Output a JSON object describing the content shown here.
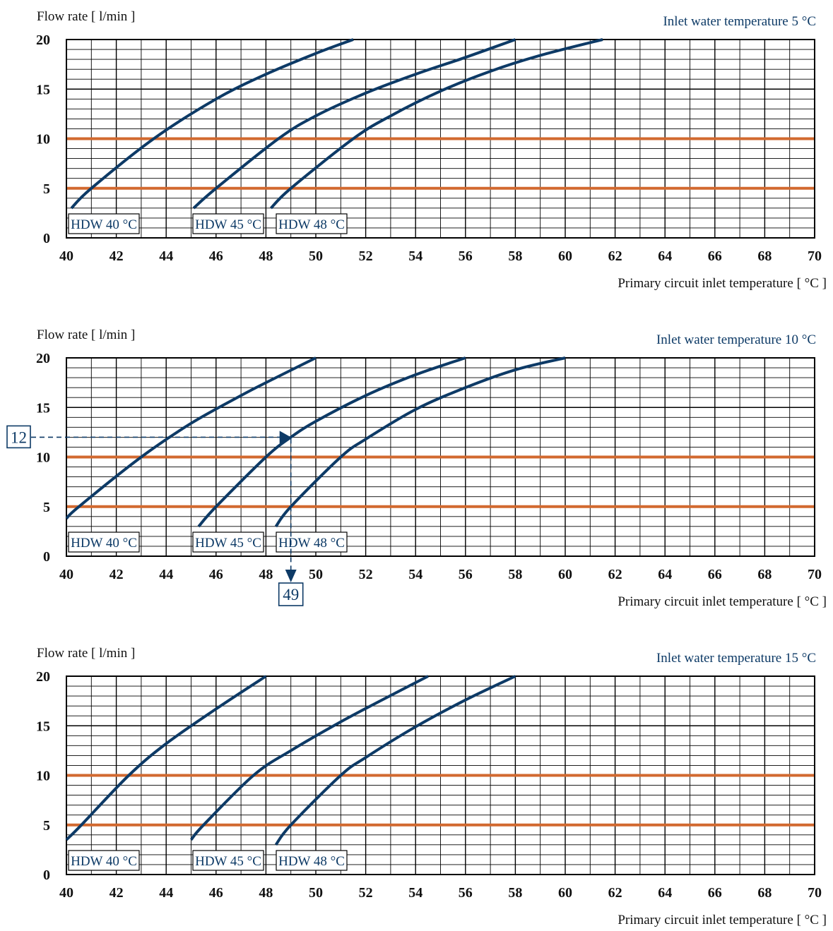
{
  "colors": {
    "curve": "#0d3a66",
    "reference_line": "#d2692f",
    "grid": "#000000",
    "label_text": "#0d3a66"
  },
  "chart_data": [
    {
      "type": "line",
      "title": "",
      "subtitle": "Inlet water temperature  5 °C",
      "xlabel": "Primary circuit inlet temperature [ °C ]",
      "ylabel": "Flow rate [ l/min ]",
      "xlim": [
        40,
        70
      ],
      "ylim": [
        0,
        20
      ],
      "x_ticks": [
        "40",
        "42",
        "44",
        "46",
        "48",
        "50",
        "52",
        "54",
        "56",
        "58",
        "60",
        "62",
        "64",
        "66",
        "68",
        "70"
      ],
      "y_ticks": [
        "0",
        "5",
        "10",
        "15",
        "20"
      ],
      "grid": true,
      "reference_lines_y": [
        5,
        10
      ],
      "series": [
        {
          "name": "HDW 40 °C",
          "points": [
            [
              40.2,
              3
            ],
            [
              41,
              5
            ],
            [
              43.5,
              10
            ],
            [
              46,
              14
            ],
            [
              48,
              16.5
            ],
            [
              50,
              18.6
            ],
            [
              51.5,
              20
            ]
          ]
        },
        {
          "name": "HDW 45 °C",
          "points": [
            [
              45.1,
              3
            ],
            [
              46,
              5
            ],
            [
              48.5,
              10
            ],
            [
              50,
              12.3
            ],
            [
              52,
              14.6
            ],
            [
              54,
              16.5
            ],
            [
              56,
              18.2
            ],
            [
              58,
              20
            ]
          ]
        },
        {
          "name": "HDW 48 °C",
          "points": [
            [
              48.2,
              3
            ],
            [
              49,
              5
            ],
            [
              51.5,
              10
            ],
            [
              53,
              12.3
            ],
            [
              55,
              14.8
            ],
            [
              57,
              16.8
            ],
            [
              59,
              18.4
            ],
            [
              61.5,
              20
            ]
          ]
        }
      ],
      "annotation": null
    },
    {
      "type": "line",
      "title": "",
      "subtitle": "Inlet water temperature 10 °C",
      "xlabel": "Primary circuit inlet temperature [ °C ]",
      "ylabel": "Flow rate [ l/min ]",
      "xlim": [
        40,
        70
      ],
      "ylim": [
        0,
        20
      ],
      "x_ticks": [
        "40",
        "42",
        "44",
        "46",
        "48",
        "50",
        "52",
        "54",
        "56",
        "58",
        "60",
        "62",
        "64",
        "66",
        "68",
        "70"
      ],
      "y_ticks": [
        "0",
        "5",
        "10",
        "15",
        "20"
      ],
      "grid": true,
      "reference_lines_y": [
        5,
        10
      ],
      "series": [
        {
          "name": "HDW 40 °C",
          "points": [
            [
              40,
              3.8
            ],
            [
              40.5,
              5
            ],
            [
              43,
              10
            ],
            [
              45,
              13.4
            ],
            [
              47,
              16.2
            ],
            [
              48,
              17.5
            ],
            [
              50,
              20
            ]
          ]
        },
        {
          "name": "HDW 45 °C",
          "points": [
            [
              45.3,
              3
            ],
            [
              46,
              5
            ],
            [
              48,
              10
            ],
            [
              49,
              12
            ],
            [
              50,
              13.6
            ],
            [
              52,
              16.2
            ],
            [
              54,
              18.3
            ],
            [
              56,
              20
            ]
          ]
        },
        {
          "name": "HDW 48 °C",
          "points": [
            [
              48.4,
              3
            ],
            [
              49,
              5
            ],
            [
              51,
              10
            ],
            [
              52,
              11.8
            ],
            [
              54,
              14.8
            ],
            [
              56,
              17
            ],
            [
              58,
              18.8
            ],
            [
              60,
              20
            ]
          ]
        }
      ],
      "annotation": {
        "flow": "12",
        "temperature": "49",
        "x": 49,
        "y": 12
      }
    },
    {
      "type": "line",
      "title": "",
      "subtitle": "Inlet water temperature  15 °C",
      "xlabel": "Primary circuit inlet temperature [ °C ]",
      "ylabel": "Flow rate [ l/min ]",
      "xlim": [
        40,
        70
      ],
      "ylim": [
        0,
        20
      ],
      "x_ticks": [
        "40",
        "42",
        "44",
        "46",
        "48",
        "50",
        "52",
        "54",
        "56",
        "58",
        "60",
        "62",
        "64",
        "66",
        "68",
        "70"
      ],
      "y_ticks": [
        "0",
        "5",
        "10",
        "15",
        "20"
      ],
      "grid": true,
      "reference_lines_y": [
        5,
        10
      ],
      "series": [
        {
          "name": "HDW 40 °C",
          "points": [
            [
              40,
              3.5
            ],
            [
              40.6,
              5
            ],
            [
              42.5,
              10
            ],
            [
              44,
              13.2
            ],
            [
              46,
              16.7
            ],
            [
              48,
              20
            ]
          ]
        },
        {
          "name": "HDW 45 °C",
          "points": [
            [
              45,
              3.5
            ],
            [
              45.5,
              5
            ],
            [
              47.5,
              10
            ],
            [
              49,
              12.5
            ],
            [
              51,
              15.4
            ],
            [
              52.5,
              17.4
            ],
            [
              54.5,
              20
            ]
          ]
        },
        {
          "name": "HDW 48 °C",
          "points": [
            [
              48.4,
              3
            ],
            [
              49,
              5
            ],
            [
              51,
              10
            ],
            [
              52,
              11.8
            ],
            [
              54,
              14.9
            ],
            [
              56,
              17.6
            ],
            [
              58,
              20
            ]
          ]
        }
      ],
      "annotation": null
    }
  ]
}
